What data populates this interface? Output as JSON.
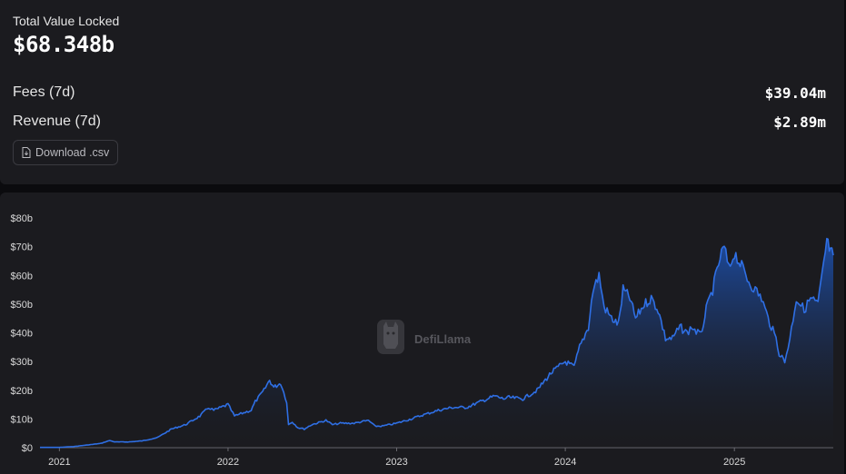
{
  "stats": {
    "tvl_label": "Total Value Locked",
    "tvl_value": "$68.348b",
    "fees_label": "Fees (7d)",
    "fees_value": "$39.04m",
    "revenue_label": "Revenue (7d)",
    "revenue_value": "$2.89m"
  },
  "download": {
    "label": "Download .csv",
    "icon": "file-download-icon"
  },
  "watermark": {
    "text": "DefiLlama",
    "icon": "llama-logo"
  },
  "colors": {
    "line": "#2f6fe4",
    "area_top": "#1d4ea8",
    "background": "#1b1b1f"
  },
  "chart_data": {
    "type": "area",
    "title": "",
    "xlabel": "",
    "ylabel": "",
    "x_ticks": [
      "2021",
      "2022",
      "2023",
      "2024",
      "2025"
    ],
    "y_ticks": [
      "$0",
      "$10b",
      "$20b",
      "$30b",
      "$40b",
      "$50b",
      "$60b",
      "$70b",
      "$80b"
    ],
    "ylim": [
      0,
      80
    ],
    "xlim": [
      "2020-11-20",
      "2025-08-03"
    ],
    "grid": false,
    "series": [
      {
        "unit": "$b",
        "x": [
          "2020-11-20",
          "2021-01-01",
          "2021-02-01",
          "2021-03-01",
          "2021-04-01",
          "2021-04-20",
          "2021-05-01",
          "2021-06-01",
          "2021-07-01",
          "2021-08-01",
          "2021-09-01",
          "2021-10-01",
          "2021-11-01",
          "2021-11-20",
          "2021-12-01",
          "2022-01-01",
          "2022-01-15",
          "2022-02-01",
          "2022-02-20",
          "2022-03-01",
          "2022-03-20",
          "2022-04-01",
          "2022-04-10",
          "2022-04-25",
          "2022-05-08",
          "2022-05-12",
          "2022-05-20",
          "2022-06-01",
          "2022-06-15",
          "2022-07-01",
          "2022-08-01",
          "2022-08-15",
          "2022-09-01",
          "2022-10-01",
          "2022-11-01",
          "2022-11-15",
          "2022-12-01",
          "2023-01-01",
          "2023-02-01",
          "2023-03-01",
          "2023-04-01",
          "2023-05-01",
          "2023-06-01",
          "2023-07-01",
          "2023-08-01",
          "2023-08-20",
          "2023-09-01",
          "2023-10-01",
          "2023-11-01",
          "2023-12-01",
          "2024-01-01",
          "2024-01-20",
          "2024-02-01",
          "2024-02-20",
          "2024-03-01",
          "2024-03-14",
          "2024-03-25",
          "2024-04-10",
          "2024-04-25",
          "2024-05-05",
          "2024-05-20",
          "2024-06-01",
          "2024-06-20",
          "2024-07-05",
          "2024-07-20",
          "2024-08-05",
          "2024-08-20",
          "2024-09-05",
          "2024-09-20",
          "2024-10-01",
          "2024-10-20",
          "2024-11-01",
          "2024-11-15",
          "2024-12-01",
          "2024-12-10",
          "2024-12-20",
          "2025-01-01",
          "2025-01-20",
          "2025-02-01",
          "2025-02-15",
          "2025-03-01",
          "2025-03-15",
          "2025-04-01",
          "2025-04-08",
          "2025-04-20",
          "2025-05-01",
          "2025-05-15",
          "2025-06-01",
          "2025-06-15",
          "2025-07-01",
          "2025-07-10",
          "2025-07-20",
          "2025-07-28",
          "2025-08-03"
        ],
        "y": [
          0.1,
          0.1,
          0.4,
          0.9,
          1.5,
          2.5,
          2.0,
          2.0,
          2.4,
          3.5,
          6.5,
          8.0,
          11.0,
          14.0,
          13.0,
          15.0,
          11.0,
          12.0,
          13.0,
          16.0,
          20.0,
          23.5,
          21.0,
          22.5,
          16.0,
          8.0,
          9.0,
          7.0,
          6.5,
          8.0,
          9.5,
          8.0,
          8.5,
          8.5,
          9.5,
          7.5,
          7.5,
          8.5,
          10.0,
          11.5,
          13.0,
          14.0,
          14.0,
          16.0,
          18.0,
          17.0,
          17.5,
          17.0,
          20.0,
          26.0,
          30.0,
          28.0,
          35.0,
          42.0,
          55.0,
          60.0,
          49.0,
          45.0,
          43.0,
          55.0,
          52.0,
          45.0,
          50.0,
          52.0,
          48.0,
          38.0,
          38.0,
          42.0,
          40.0,
          42.0,
          39.0,
          48.0,
          55.0,
          66.0,
          70.0,
          62.0,
          68.0,
          62.0,
          58.0,
          55.0,
          52.0,
          45.0,
          38.0,
          33.0,
          30.0,
          38.0,
          52.0,
          48.0,
          52.0,
          50.0,
          60.0,
          72.0,
          68.0,
          67.0
        ]
      }
    ]
  }
}
